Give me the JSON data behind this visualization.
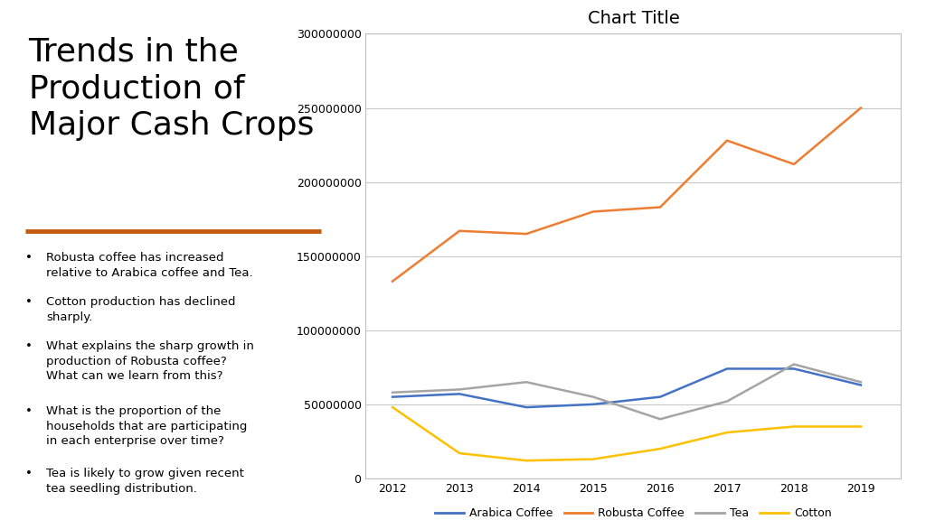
{
  "chart_title": "Chart Title",
  "years": [
    2012,
    2013,
    2014,
    2015,
    2016,
    2017,
    2018,
    2019
  ],
  "arabica_coffee": [
    55000000,
    57000000,
    48000000,
    50000000,
    55000000,
    74000000,
    74000000,
    63000000
  ],
  "robusta_coffee": [
    133000000,
    167000000,
    165000000,
    180000000,
    183000000,
    228000000,
    212000000,
    250000000
  ],
  "tea": [
    58000000,
    60000000,
    65000000,
    55000000,
    40000000,
    52000000,
    77000000,
    65000000
  ],
  "cotton": [
    48000000,
    17000000,
    12000000,
    13000000,
    20000000,
    31000000,
    35000000,
    35000000
  ],
  "arabica_color": "#4472C4",
  "robusta_color": "#ED7D31",
  "tea_color": "#A5A5A5",
  "cotton_color": "#FFC000",
  "background_color": "#FFFFFF",
  "ylim": [
    0,
    300000000
  ],
  "yticks": [
    0,
    50000000,
    100000000,
    150000000,
    200000000,
    250000000,
    300000000
  ],
  "orange_line_color": "#C55A11",
  "title_line1": "Trends in the",
  "title_line2": "Production of",
  "title_line3": "Major Cash Crops",
  "bullet_points": [
    "Robusta coffee has increased\nrelative to Arabica coffee and Tea.",
    "Cotton production has declined\nsharply.",
    "What explains the sharp growth in\nproduction of Robusta coffee?\nWhat can we learn from this?",
    "What is the proportion of the\nhouseholds that are participating\nin each enterprise over time?",
    "Tea is likely to grow given recent\ntea seedling distribution."
  ],
  "title_fontsize": 26,
  "bullet_fontsize": 9.5,
  "chart_title_fontsize": 14,
  "legend_fontsize": 9,
  "tick_fontsize": 9
}
